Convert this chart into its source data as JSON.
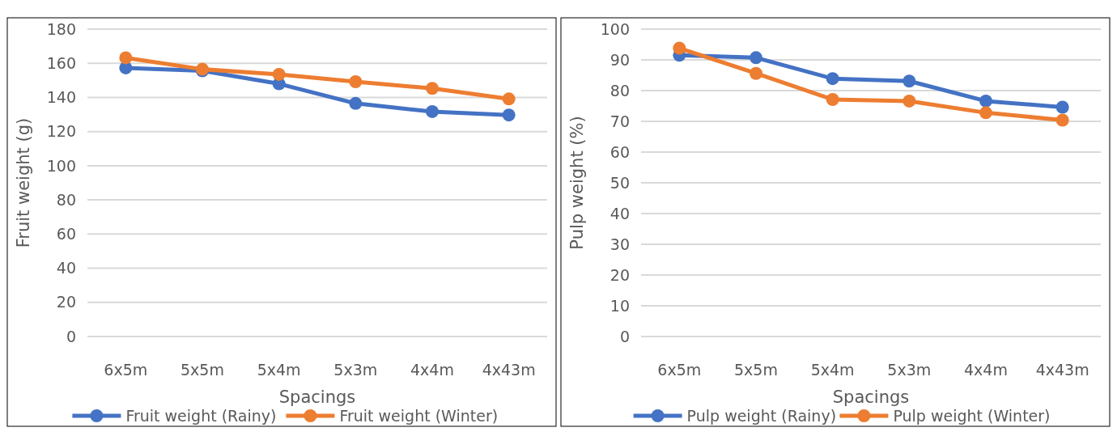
{
  "chart_data": [
    {
      "type": "line",
      "xlabel": "Spacings",
      "ylabel": "Fruit weight (g)",
      "categories": [
        "6x5m",
        "5x5m",
        "5x4m",
        "5x3m",
        "4x4m",
        "4x43m"
      ],
      "series": [
        {
          "name": "Fruit weight (Rainy)",
          "color": "#4472c4",
          "values": [
            157.3,
            155.6,
            148,
            136.5,
            131.7,
            129.7
          ]
        },
        {
          "name": "Fruit weight (Winter)",
          "color": "#ed7d31",
          "values": [
            163.2,
            156.5,
            153.5,
            149.2,
            145.3,
            139.1
          ]
        }
      ],
      "ylim": [
        0,
        180
      ],
      "yticks": [
        0,
        20,
        40,
        60,
        80,
        100,
        120,
        140,
        160,
        180
      ],
      "grid": "y",
      "legend": "bottom",
      "marker": "circle"
    },
    {
      "type": "line",
      "xlabel": "Spacings",
      "ylabel": "Pulp weight (%)",
      "categories": [
        "6x5m",
        "5x5m",
        "5x4m",
        "5x3m",
        "4x4m",
        "4x43m"
      ],
      "series": [
        {
          "name": "Pulp weight (Rainy)",
          "color": "#4472c4",
          "values": [
            91.5,
            90.7,
            83.9,
            83.1,
            76.6,
            74.6
          ]
        },
        {
          "name": "Pulp weight (Winter)",
          "color": "#ed7d31",
          "values": [
            93.8,
            85.6,
            77.1,
            76.6,
            72.8,
            70.4
          ]
        }
      ],
      "ylim": [
        0,
        100
      ],
      "yticks": [
        0,
        10,
        20,
        30,
        40,
        50,
        60,
        70,
        80,
        90,
        100
      ],
      "grid": "y",
      "legend": "bottom",
      "marker": "circle"
    }
  ]
}
